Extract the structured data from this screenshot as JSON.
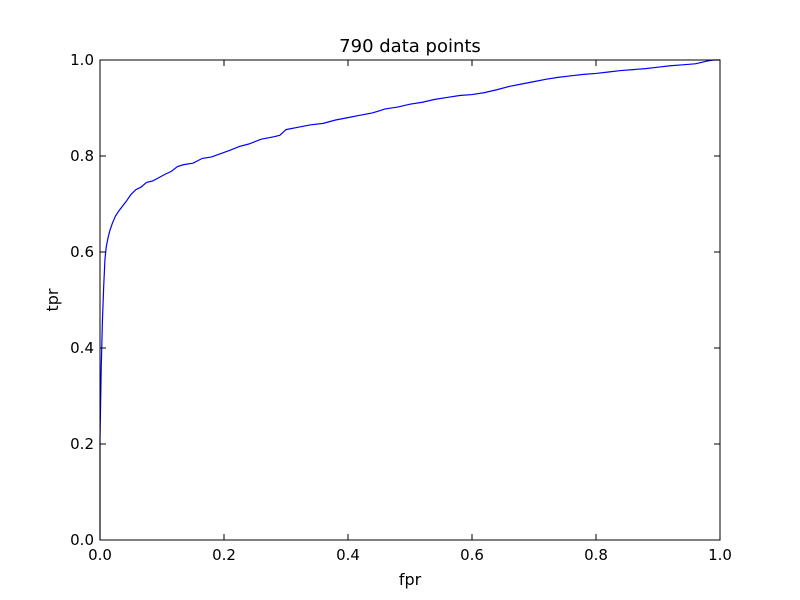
{
  "chart_data": {
    "type": "line",
    "title": "790 data points",
    "xlabel": "fpr",
    "ylabel": "tpr",
    "xlim": [
      0.0,
      1.0
    ],
    "ylim": [
      0.0,
      1.0
    ],
    "xticks": [
      "0.0",
      "0.2",
      "0.4",
      "0.6",
      "0.8",
      "1.0"
    ],
    "yticks": [
      "0.0",
      "0.2",
      "0.4",
      "0.6",
      "0.8",
      "1.0"
    ],
    "grid": false,
    "series": [
      {
        "color": "#0000ff",
        "x": [
          0.0,
          0.0,
          0.002,
          0.004,
          0.006,
          0.008,
          0.01,
          0.013,
          0.016,
          0.02,
          0.025,
          0.03,
          0.036,
          0.042,
          0.05,
          0.058,
          0.066,
          0.075,
          0.085,
          0.095,
          0.105,
          0.115,
          0.125,
          0.135,
          0.15,
          0.165,
          0.18,
          0.195,
          0.21,
          0.225,
          0.24,
          0.26,
          0.28,
          0.29,
          0.3,
          0.32,
          0.34,
          0.36,
          0.38,
          0.4,
          0.42,
          0.44,
          0.46,
          0.48,
          0.5,
          0.52,
          0.54,
          0.56,
          0.58,
          0.6,
          0.62,
          0.64,
          0.66,
          0.68,
          0.7,
          0.72,
          0.74,
          0.76,
          0.78,
          0.8,
          0.82,
          0.84,
          0.86,
          0.88,
          0.9,
          0.92,
          0.94,
          0.96,
          0.97,
          0.98,
          0.99,
          1.0
        ],
        "y": [
          0.0,
          0.21,
          0.36,
          0.46,
          0.53,
          0.585,
          0.61,
          0.63,
          0.645,
          0.66,
          0.675,
          0.685,
          0.695,
          0.705,
          0.72,
          0.73,
          0.735,
          0.745,
          0.748,
          0.755,
          0.762,
          0.768,
          0.778,
          0.782,
          0.785,
          0.795,
          0.798,
          0.805,
          0.812,
          0.82,
          0.825,
          0.835,
          0.84,
          0.843,
          0.855,
          0.86,
          0.865,
          0.868,
          0.875,
          0.88,
          0.885,
          0.89,
          0.898,
          0.902,
          0.908,
          0.912,
          0.918,
          0.922,
          0.926,
          0.928,
          0.932,
          0.938,
          0.945,
          0.95,
          0.955,
          0.96,
          0.964,
          0.967,
          0.97,
          0.972,
          0.975,
          0.978,
          0.98,
          0.982,
          0.985,
          0.988,
          0.99,
          0.992,
          0.995,
          0.998,
          1.0,
          1.0
        ]
      }
    ]
  }
}
